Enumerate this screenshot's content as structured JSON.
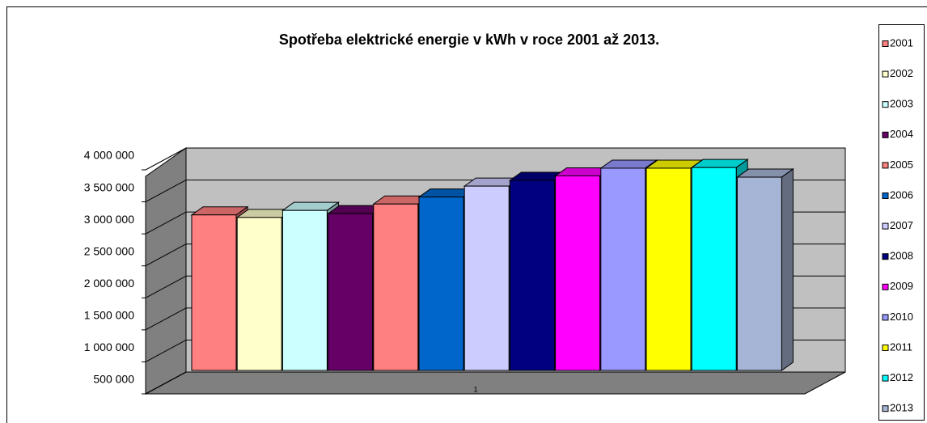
{
  "chart_data": {
    "type": "bar3d",
    "title": "Spotřeba elektrické energie v kWh v roce 2001 až 2013.",
    "categories": [
      "1"
    ],
    "series": [
      {
        "name": "2001",
        "color": "#ff8080",
        "values": [
          2980000
        ]
      },
      {
        "name": "2002",
        "color": "#ffffcc",
        "values": [
          2940000
        ]
      },
      {
        "name": "2003",
        "color": "#ccffff",
        "values": [
          3050000
        ]
      },
      {
        "name": "2004",
        "color": "#660066",
        "values": [
          3000000
        ]
      },
      {
        "name": "2005",
        "color": "#ff8080",
        "values": [
          3150000
        ]
      },
      {
        "name": "2006",
        "color": "#0066cc",
        "values": [
          3260000
        ]
      },
      {
        "name": "2007",
        "color": "#ccccff",
        "values": [
          3430000
        ]
      },
      {
        "name": "2008",
        "color": "#000080",
        "values": [
          3520000
        ]
      },
      {
        "name": "2009",
        "color": "#ff00ff",
        "values": [
          3590000
        ]
      },
      {
        "name": "2010",
        "color": "#9999ff",
        "values": [
          3710000
        ]
      },
      {
        "name": "2011",
        "color": "#ffff00",
        "values": [
          3710000
        ]
      },
      {
        "name": "2012",
        "color": "#00ffff",
        "values": [
          3720000
        ]
      },
      {
        "name": "2013",
        "color": "#a6b4d6",
        "values": [
          3570000
        ]
      }
    ],
    "ylim": [
      500000,
      4000000
    ],
    "yticks": [
      {
        "value": 500000,
        "label": "500 000"
      },
      {
        "value": 1000000,
        "label": "1 000 000"
      },
      {
        "value": 1500000,
        "label": "1 500 000"
      },
      {
        "value": 2000000,
        "label": "2 000 000"
      },
      {
        "value": 2500000,
        "label": "2 500 000"
      },
      {
        "value": 3000000,
        "label": "3 000 000"
      },
      {
        "value": 3500000,
        "label": "3 500 000"
      },
      {
        "value": 4000000,
        "label": "4 000 000"
      }
    ],
    "grid": true,
    "legend": "right"
  }
}
